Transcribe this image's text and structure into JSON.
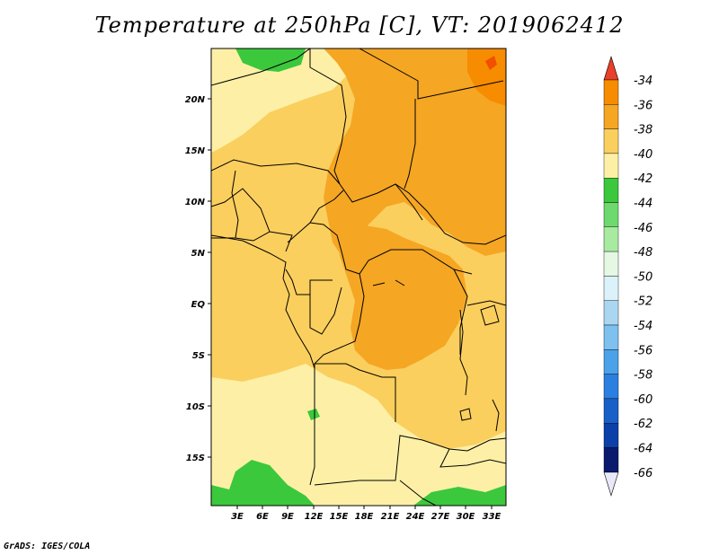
{
  "title": "Temperature at 250hPa [C], VT: 2019062412",
  "footer": "GrADS: IGES/COLA",
  "map": {
    "lat_labels": [
      "20N",
      "15N",
      "10N",
      "5N",
      "EQ",
      "5S",
      "10S",
      "15S"
    ],
    "lon_labels": [
      "3E",
      "6E",
      "9E",
      "12E",
      "15E",
      "18E",
      "21E",
      "24E",
      "27E",
      "30E",
      "33E"
    ]
  },
  "colorbar": {
    "levels": [
      "-34",
      "-36",
      "-38",
      "-40",
      "-42",
      "-44",
      "-46",
      "-48",
      "-50",
      "-52",
      "-54",
      "-56",
      "-58",
      "-60",
      "-62",
      "-64",
      "-66"
    ],
    "colors": [
      "#f05000",
      "#f78c00",
      "#f5a623",
      "#fbcf5e",
      "#fdf0a6",
      "#3cc83c",
      "#6ed96e",
      "#a8eaa0",
      "#e4f8e4",
      "#dcf2fa",
      "#aad6f2",
      "#7ec0ee",
      "#4ca2e8",
      "#2b7fe0",
      "#1860c8",
      "#0b40a8",
      "#0a1a6e"
    ],
    "top_color": "#e8402a",
    "bottom_color": "#e8e8f8"
  }
}
